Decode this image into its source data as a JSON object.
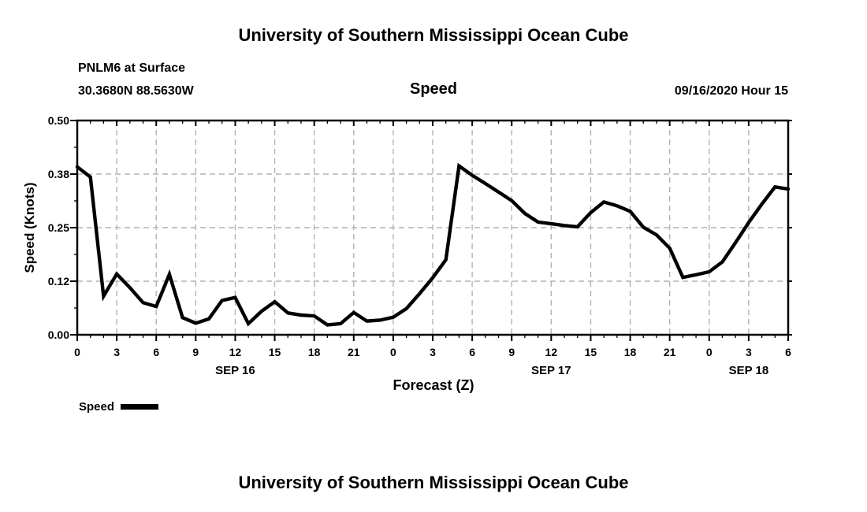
{
  "page": {
    "top_title": "University of Southern Mississippi Ocean Cube",
    "bottom_title": "University of Southern Mississippi Ocean Cube"
  },
  "header": {
    "station": "PNLM6 at Surface",
    "coordinates": "30.3680N 88.5630W",
    "plot_label": "Speed",
    "run_datetime": "09/16/2020 Hour 15"
  },
  "legend": {
    "label": "Speed"
  },
  "chart_data": {
    "type": "line",
    "title": "Speed",
    "xlabel": "Forecast (Z)",
    "ylabel": "Speed (Knots)",
    "x_start_hour": 0,
    "x_end_hour": 54,
    "ylim": [
      0,
      0.5
    ],
    "grid": true,
    "grid_color": "#b3b3b3",
    "line_color": "#000000",
    "line_width": 4.4,
    "legend_position": "bottom-left",
    "yticks": [
      {
        "value": 0.0,
        "label": "0.00"
      },
      {
        "value": 0.125,
        "label": "0.12"
      },
      {
        "value": 0.25,
        "label": "0.25"
      },
      {
        "value": 0.375,
        "label": "0.38"
      },
      {
        "value": 0.5,
        "label": "0.50"
      }
    ],
    "y_minor_interval": 0.0625,
    "xticks": [
      {
        "hour": 0,
        "label": "0"
      },
      {
        "hour": 3,
        "label": "3"
      },
      {
        "hour": 6,
        "label": "6"
      },
      {
        "hour": 9,
        "label": "9"
      },
      {
        "hour": 12,
        "label": "12"
      },
      {
        "hour": 15,
        "label": "15"
      },
      {
        "hour": 18,
        "label": "18"
      },
      {
        "hour": 21,
        "label": "21"
      },
      {
        "hour": 24,
        "label": "0"
      },
      {
        "hour": 27,
        "label": "3"
      },
      {
        "hour": 30,
        "label": "6"
      },
      {
        "hour": 33,
        "label": "9"
      },
      {
        "hour": 36,
        "label": "12"
      },
      {
        "hour": 39,
        "label": "15"
      },
      {
        "hour": 42,
        "label": "18"
      },
      {
        "hour": 45,
        "label": "21"
      },
      {
        "hour": 48,
        "label": "0"
      },
      {
        "hour": 51,
        "label": "3"
      },
      {
        "hour": 54,
        "label": "6"
      }
    ],
    "x_minor_interval": 1,
    "day_labels": [
      {
        "hour": 12,
        "label": "SEP 16"
      },
      {
        "hour": 36,
        "label": "SEP 17"
      },
      {
        "hour": 51,
        "label": "SEP 18"
      }
    ],
    "series": [
      {
        "name": "Speed",
        "x_hours": [
          0,
          1,
          2,
          3,
          4,
          5,
          6,
          7,
          8,
          9,
          10,
          11,
          12,
          13,
          14,
          15,
          16,
          17,
          18,
          19,
          20,
          21,
          22,
          23,
          24,
          25,
          26,
          27,
          28,
          29,
          30,
          31,
          32,
          33,
          34,
          35,
          36,
          37,
          38,
          39,
          40,
          41,
          42,
          43,
          44,
          45,
          46,
          47,
          48,
          49,
          50,
          51,
          52,
          53,
          54
        ],
        "values": [
          0.392,
          0.368,
          0.09,
          0.142,
          0.11,
          0.075,
          0.066,
          0.141,
          0.04,
          0.027,
          0.037,
          0.08,
          0.087,
          0.026,
          0.055,
          0.077,
          0.051,
          0.046,
          0.044,
          0.023,
          0.026,
          0.052,
          0.032,
          0.034,
          0.041,
          0.061,
          0.096,
          0.133,
          0.175,
          0.394,
          0.372,
          0.353,
          0.333,
          0.313,
          0.283,
          0.263,
          0.259,
          0.255,
          0.252,
          0.285,
          0.31,
          0.301,
          0.288,
          0.251,
          0.233,
          0.202,
          0.134,
          0.14,
          0.147,
          0.17,
          0.215,
          0.262,
          0.305,
          0.345,
          0.34
        ]
      }
    ]
  }
}
